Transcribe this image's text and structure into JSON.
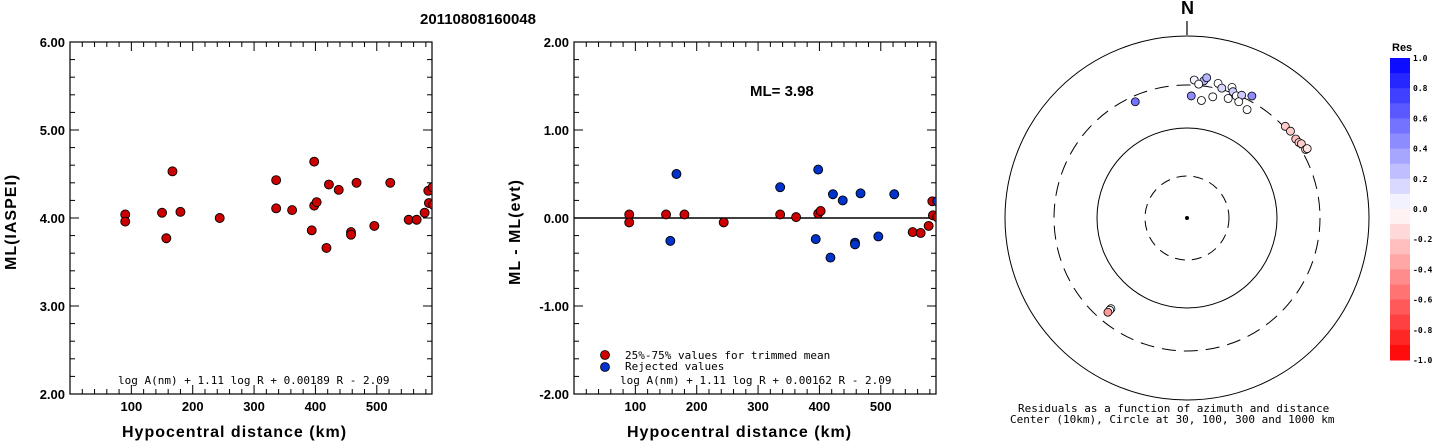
{
  "title": "20110808160048",
  "chart_data": [
    {
      "type": "scatter",
      "id": "left",
      "xlabel": "Hypocentral distance (km)",
      "ylabel": "ML(IASPEI)",
      "xlim": [
        0,
        590
      ],
      "ylim": [
        2.0,
        6.0
      ],
      "xticks": [
        100,
        200,
        300,
        400,
        500
      ],
      "yticks": [
        "2.00",
        "3.00",
        "4.00",
        "5.00",
        "6.00"
      ],
      "formula": "log A(nm) + 1.11 log R + 0.00189 R - 2.09",
      "series": [
        {
          "color": "#cc0000",
          "points": [
            [
              90,
              4.04
            ],
            [
              90,
              3.96
            ],
            [
              150,
              4.06
            ],
            [
              157,
              3.77
            ],
            [
              167,
              4.53
            ],
            [
              180,
              4.07
            ],
            [
              244,
              4.0
            ],
            [
              336,
              4.43
            ],
            [
              336,
              4.11
            ],
            [
              362,
              4.09
            ],
            [
              394,
              3.86
            ],
            [
              398,
              4.64
            ],
            [
              398,
              4.14
            ],
            [
              402,
              4.18
            ],
            [
              418,
              3.66
            ],
            [
              422,
              4.38
            ],
            [
              438,
              4.32
            ],
            [
              458,
              3.84
            ],
            [
              458,
              3.81
            ],
            [
              467,
              4.4
            ],
            [
              496,
              3.91
            ],
            [
              522,
              4.4
            ],
            [
              552,
              3.98
            ],
            [
              565,
              3.98
            ],
            [
              578,
              4.06
            ],
            [
              584,
              4.31
            ],
            [
              585,
              4.17
            ],
            [
              591,
              4.35
            ],
            [
              592,
              4.15
            ]
          ]
        }
      ]
    },
    {
      "type": "scatter",
      "id": "right",
      "xlabel": "Hypocentral distance (km)",
      "ylabel": "ML - ML(evt)",
      "xlim": [
        0,
        590
      ],
      "ylim": [
        -2.0,
        2.0
      ],
      "xticks": [
        100,
        200,
        300,
        400,
        500
      ],
      "yticks": [
        "-2.00",
        "-1.00",
        "0.00",
        "1.00",
        "2.00"
      ],
      "annotation": "ML= 3.98",
      "formula": "log A(nm) + 1.11 log R + 0.00162 R - 2.09",
      "series": [
        {
          "name": "25%-75% values for trimmed mean",
          "color": "#cc0000",
          "points": [
            [
              90,
              0.04
            ],
            [
              90,
              -0.05
            ],
            [
              150,
              0.04
            ],
            [
              180,
              0.04
            ],
            [
              244,
              -0.05
            ],
            [
              336,
              0.04
            ],
            [
              362,
              0.01
            ],
            [
              398,
              0.05
            ],
            [
              402,
              0.08
            ],
            [
              552,
              -0.16
            ],
            [
              565,
              -0.17
            ],
            [
              578,
              -0.09
            ],
            [
              584,
              0.19
            ],
            [
              585,
              0.03
            ],
            [
              592,
              0.01
            ]
          ]
        },
        {
          "name": "Rejected values",
          "color": "#0033cc",
          "points": [
            [
              157,
              -0.26
            ],
            [
              167,
              0.5
            ],
            [
              336,
              0.35
            ],
            [
              394,
              -0.24
            ],
            [
              398,
              0.55
            ],
            [
              418,
              -0.45
            ],
            [
              422,
              0.27
            ],
            [
              438,
              0.2
            ],
            [
              458,
              -0.28
            ],
            [
              458,
              -0.3
            ],
            [
              467,
              0.28
            ],
            [
              496,
              -0.21
            ],
            [
              522,
              0.27
            ],
            [
              592,
              0.19
            ]
          ]
        }
      ]
    },
    {
      "type": "polar-scatter",
      "id": "polar",
      "north_label": "N",
      "caption1": "Residuals as a function of azimuth and distance",
      "caption2": "Center (10km), Circle at 30, 100, 300 and 1000 km",
      "colorbar_title": "Res",
      "colorbar_ticks": [
        "1.0",
        "0.8",
        "0.6",
        "0.4",
        "0.2",
        "0.0",
        "-0.2",
        "-0.4",
        "-0.6",
        "-0.8",
        "-1.0"
      ],
      "points": [
        {
          "az": 3,
          "dist": 330,
          "res": 0.05
        },
        {
          "az": 7,
          "dist": 330,
          "res": 0.3
        },
        {
          "az": 8,
          "dist": 360,
          "res": 0.3
        },
        {
          "az": 5,
          "dist": 300,
          "res": 0.0
        },
        {
          "az": 13,
          "dist": 330,
          "res": 0.0
        },
        {
          "az": 19,
          "dist": 330,
          "res": 0.0
        },
        {
          "az": 15,
          "dist": 300,
          "res": 0.15
        },
        {
          "az": 20,
          "dist": 300,
          "res": 0.2
        },
        {
          "az": 22,
          "dist": 280,
          "res": 0.0
        },
        {
          "az": 24,
          "dist": 300,
          "res": 0.2
        },
        {
          "az": 28,
          "dist": 330,
          "res": 0.45
        },
        {
          "az": 24,
          "dist": 250,
          "res": 0.0
        },
        {
          "az": 12,
          "dist": 230,
          "res": 0.0
        },
        {
          "az": 2,
          "dist": 220,
          "res": 0.45
        },
        {
          "az": 7,
          "dist": 200,
          "res": 0.0
        },
        {
          "az": 19,
          "dist": 245,
          "res": 0.0
        },
        {
          "az": 29,
          "dist": 230,
          "res": 0.0
        },
        {
          "az": -24,
          "dist": 250,
          "res": 0.55
        },
        {
          "az": 47,
          "dist": 300,
          "res": -0.2
        },
        {
          "az": 50,
          "dist": 305,
          "res": -0.2
        },
        {
          "az": 54,
          "dist": 300,
          "res": -0.25
        },
        {
          "az": 56,
          "dist": 305,
          "res": -0.2
        },
        {
          "az": 57,
          "dist": 315,
          "res": -0.2
        },
        {
          "az": 60,
          "dist": 320,
          "res": -0.15
        },
        {
          "az": 60,
          "dist": 335,
          "res": -0.1
        },
        {
          "az": -140,
          "dist": 200,
          "res": 0.0
        },
        {
          "az": -140,
          "dist": 210,
          "res": 0.0
        },
        {
          "az": -140,
          "dist": 225,
          "res": -0.4
        }
      ]
    }
  ]
}
